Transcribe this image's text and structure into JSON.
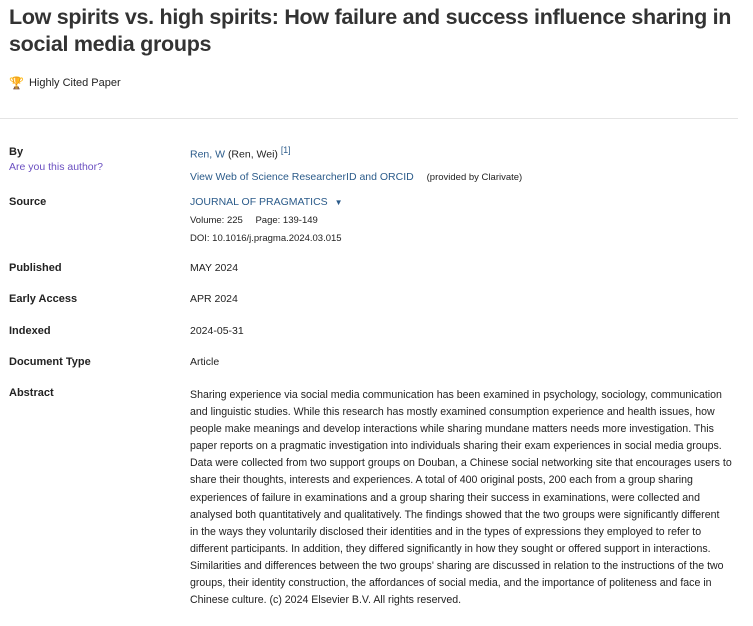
{
  "title": "Low spirits vs. high spirits: How failure and success influence sharing in social media groups",
  "badge": {
    "icon": "trophy-icon",
    "label": "Highly Cited Paper",
    "color": "#c0392b"
  },
  "by": {
    "label": "By",
    "are_you": "Are you this author?",
    "author_link": "Ren, W",
    "author_full": "(Ren, Wei)",
    "affil": "[1]",
    "researcher_link": "View Web of Science ResearcherID and ORCID",
    "provided": "(provided by Clarivate)"
  },
  "source": {
    "label": "Source",
    "journal": "JOURNAL OF PRAGMATICS",
    "volume": "Volume: 225",
    "page": "Page: 139-149",
    "doi": "DOI: 10.1016/j.pragma.2024.03.015"
  },
  "published": {
    "label": "Published",
    "value": "MAY 2024"
  },
  "early_access": {
    "label": "Early Access",
    "value": "APR 2024"
  },
  "indexed": {
    "label": "Indexed",
    "value": "2024-05-31"
  },
  "doc_type": {
    "label": "Document Type",
    "value": "Article"
  },
  "abstract": {
    "label": "Abstract",
    "lines": [
      "Sharing experience via social media communication has been examined in psychology, sociology, communication",
      "and linguistic studies. While this research has mostly examined consumption experience and health issues, how",
      "people make meanings and develop interactions while sharing mundane matters needs more investigation. This",
      "paper reports on a pragmatic investigation into individuals sharing their exam experiences in social media groups.",
      "Data were collected from two support groups on Douban, a Chinese social networking site that encourages users to",
      "share their thoughts, interests and experiences. A total of 400 original posts, 200 each from a group sharing",
      "experiences of failure in examinations and a group sharing their success in examinations, were collected and",
      "analysed both quantitatively and qualitatively. The findings showed that the two groups were significantly different",
      "in the ways they voluntarily disclosed their identities and in the types of expressions they employed to refer to",
      "different participants. In addition, they differed significantly in how they sought or offered support in interactions.",
      "Similarities and differences between the two groups' sharing are discussed in relation to the instructions of the two",
      "groups, their identity construction, the affordances of social media, and the importance of politeness and face in",
      "Chinese culture. (c) 2024 Elsevier B.V. All rights reserved."
    ]
  }
}
